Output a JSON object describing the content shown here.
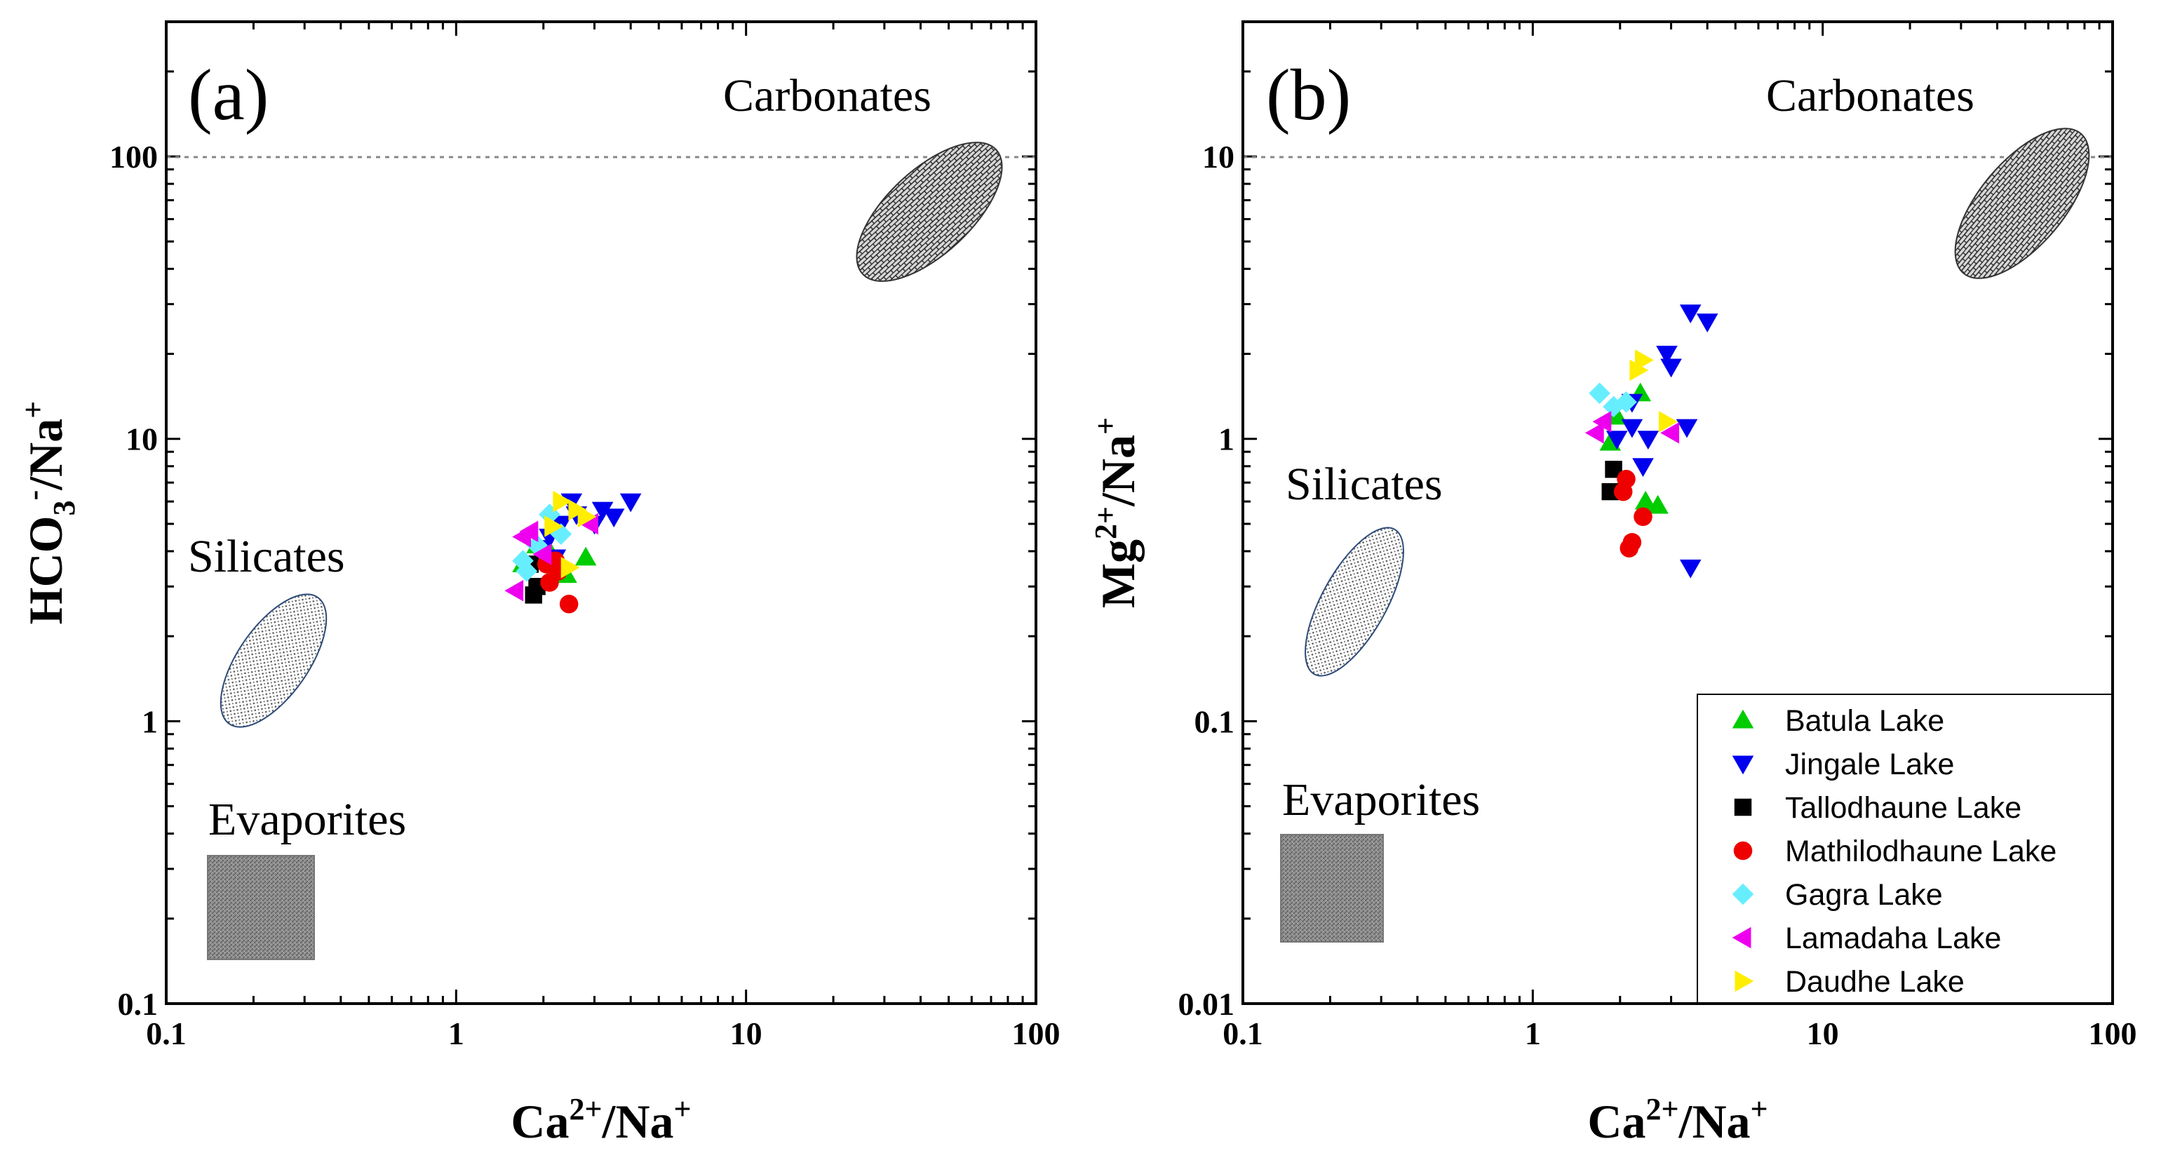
{
  "figure": {
    "panels": [
      "(a)",
      "(b)"
    ]
  },
  "chart_data": [
    {
      "type": "scatter",
      "panel_label": "(a)",
      "xscale": "log",
      "yscale": "log",
      "xlim": [
        0.1,
        100
      ],
      "ylim": [
        0.1,
        300
      ],
      "x_ticks": [
        "0.1",
        "1",
        "10",
        "100"
      ],
      "y_ticks": [
        "0.1",
        "1",
        "10",
        "100"
      ],
      "xlabel": {
        "base": "Ca",
        "sup1": "2+",
        "mid": "/Na",
        "sup2": "+"
      },
      "ylabel": {
        "base": "HCO",
        "sub": "3",
        "sup1": "-",
        "mid": "/Na",
        "sup2": "+"
      },
      "reference_line": {
        "y": 100,
        "style": "dotted"
      },
      "regions": [
        {
          "name": "Carbonates",
          "shape": "ellipse",
          "pattern": "brick"
        },
        {
          "name": "Silicates",
          "shape": "ellipse",
          "pattern": "dots"
        },
        {
          "name": "Evaporites",
          "shape": "rectangle",
          "pattern": "dense"
        }
      ],
      "grid": false,
      "series": [
        {
          "name": "Batula Lake",
          "x": [
            1.7,
            1.9,
            2.1,
            2.4,
            2.8,
            2.0,
            2.2
          ],
          "y": [
            3.6,
            4.2,
            4.0,
            3.3,
            3.8,
            3.8,
            4.8
          ]
        },
        {
          "name": "Jingale Lake",
          "x": [
            2.0,
            2.3,
            2.5,
            3.2,
            3.5,
            4.0,
            2.1,
            2.6,
            2.2,
            3.0
          ],
          "y": [
            4.1,
            5.0,
            6.0,
            5.6,
            5.3,
            6.0,
            4.5,
            5.4,
            3.8,
            5.0
          ]
        },
        {
          "name": "Tallodhaune Lake",
          "x": [
            1.85,
            1.9,
            1.8
          ],
          "y": [
            2.8,
            3.0,
            3.6
          ]
        },
        {
          "name": "Mathilodhaune Lake",
          "x": [
            2.1,
            2.2,
            2.45,
            2.05,
            2.25
          ],
          "y": [
            3.1,
            3.7,
            2.6,
            3.6,
            3.4
          ]
        },
        {
          "name": "Gagra Lake",
          "x": [
            1.7,
            2.1,
            2.3,
            1.9,
            1.75
          ],
          "y": [
            3.7,
            5.4,
            4.6,
            4.2,
            3.4
          ]
        },
        {
          "name": "Lamadaha Lake",
          "x": [
            1.6,
            1.7,
            2.9,
            1.8,
            2.0
          ],
          "y": [
            2.9,
            4.5,
            5.0,
            4.7,
            3.9
          ]
        },
        {
          "name": "Daudhe Lake",
          "x": [
            2.3,
            2.6,
            2.8,
            2.45,
            2.15
          ],
          "y": [
            6.0,
            5.6,
            5.3,
            3.5,
            4.9
          ]
        }
      ]
    },
    {
      "type": "scatter",
      "panel_label": "(b)",
      "xscale": "log",
      "yscale": "log",
      "xlim": [
        0.1,
        100
      ],
      "ylim": [
        0.01,
        30
      ],
      "x_ticks": [
        "0.1",
        "1",
        "10",
        "100"
      ],
      "y_ticks": [
        "0.01",
        "0.1",
        "1",
        "10"
      ],
      "xlabel": {
        "base": "Ca",
        "sup1": "2+",
        "mid": "/Na",
        "sup2": "+"
      },
      "ylabel": {
        "base": "Mg",
        "sup1": "2+",
        "mid": "/Na",
        "sup2": "+"
      },
      "reference_line": {
        "y": 10,
        "style": "dotted"
      },
      "regions": [
        {
          "name": "Carbonates",
          "shape": "ellipse",
          "pattern": "brick"
        },
        {
          "name": "Silicates",
          "shape": "ellipse",
          "pattern": "dots"
        },
        {
          "name": "Evaporites",
          "shape": "rectangle",
          "pattern": "dense"
        }
      ],
      "grid": false,
      "legend_position": "bottom-right",
      "series": [
        {
          "name": "Batula Lake",
          "marker": "triangle-up",
          "color": "#00cc00",
          "x": [
            1.85,
            2.45,
            2.7,
            2.35,
            1.95
          ],
          "y": [
            0.97,
            0.6,
            0.58,
            1.45,
            1.2
          ]
        },
        {
          "name": "Jingale Lake",
          "marker": "triangle-down",
          "color": "#0000ee",
          "x": [
            3.5,
            4.0,
            2.9,
            3.0,
            2.2,
            2.4,
            3.4,
            1.95,
            2.5,
            2.2,
            3.5
          ],
          "y": [
            2.8,
            2.6,
            2.0,
            1.8,
            1.35,
            0.8,
            1.1,
            1.0,
            1.0,
            1.1,
            0.35
          ]
        },
        {
          "name": "Tallodhaune Lake",
          "marker": "square",
          "color": "#000000",
          "x": [
            1.9,
            1.85
          ],
          "y": [
            0.78,
            0.65
          ]
        },
        {
          "name": "Mathilodhaune Lake",
          "marker": "circle",
          "color": "#ee0000",
          "x": [
            2.05,
            2.1,
            2.4,
            2.15,
            2.2
          ],
          "y": [
            0.65,
            0.72,
            0.53,
            0.41,
            0.43
          ]
        },
        {
          "name": "Gagra Lake",
          "marker": "diamond",
          "color": "#66eeff",
          "x": [
            1.7,
            1.9,
            2.1
          ],
          "y": [
            1.45,
            1.3,
            1.35
          ]
        },
        {
          "name": "Lamadaha Lake",
          "marker": "triangle-left",
          "color": "#ee00ee",
          "x": [
            1.65,
            1.75,
            3.0
          ],
          "y": [
            1.05,
            1.15,
            1.05
          ]
        },
        {
          "name": "Daudhe Lake",
          "marker": "triangle-right",
          "color": "#ffee00",
          "x": [
            2.4,
            2.3,
            2.9
          ],
          "y": [
            1.9,
            1.75,
            1.15
          ]
        }
      ]
    }
  ]
}
